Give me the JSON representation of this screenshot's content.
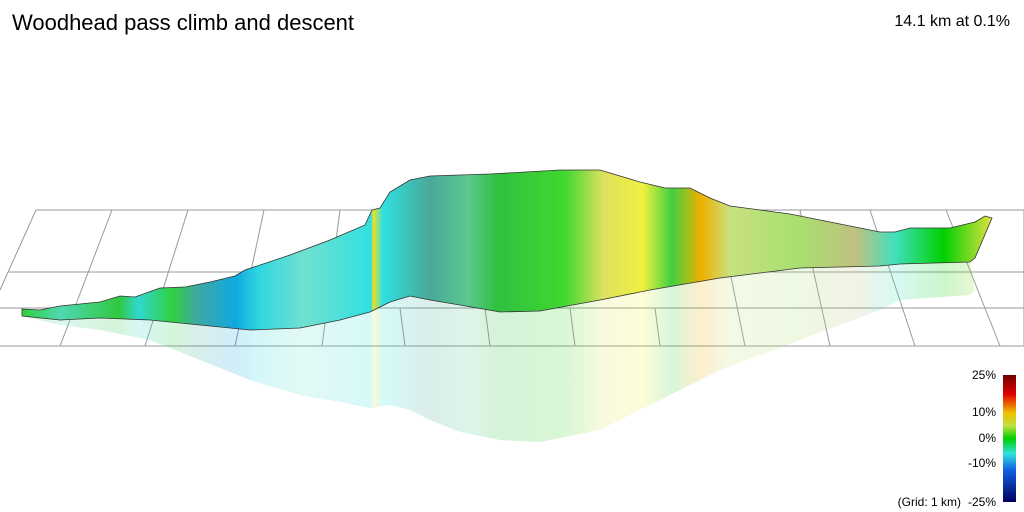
{
  "header": {
    "title": "Woodhead pass climb and descent",
    "summary": "14.1 km at 0.1%"
  },
  "legend": {
    "labels": [
      "25%",
      "10%",
      "0%",
      "-10%",
      "-25%"
    ],
    "grid_note": "(Grid: 1 km)"
  }
}
